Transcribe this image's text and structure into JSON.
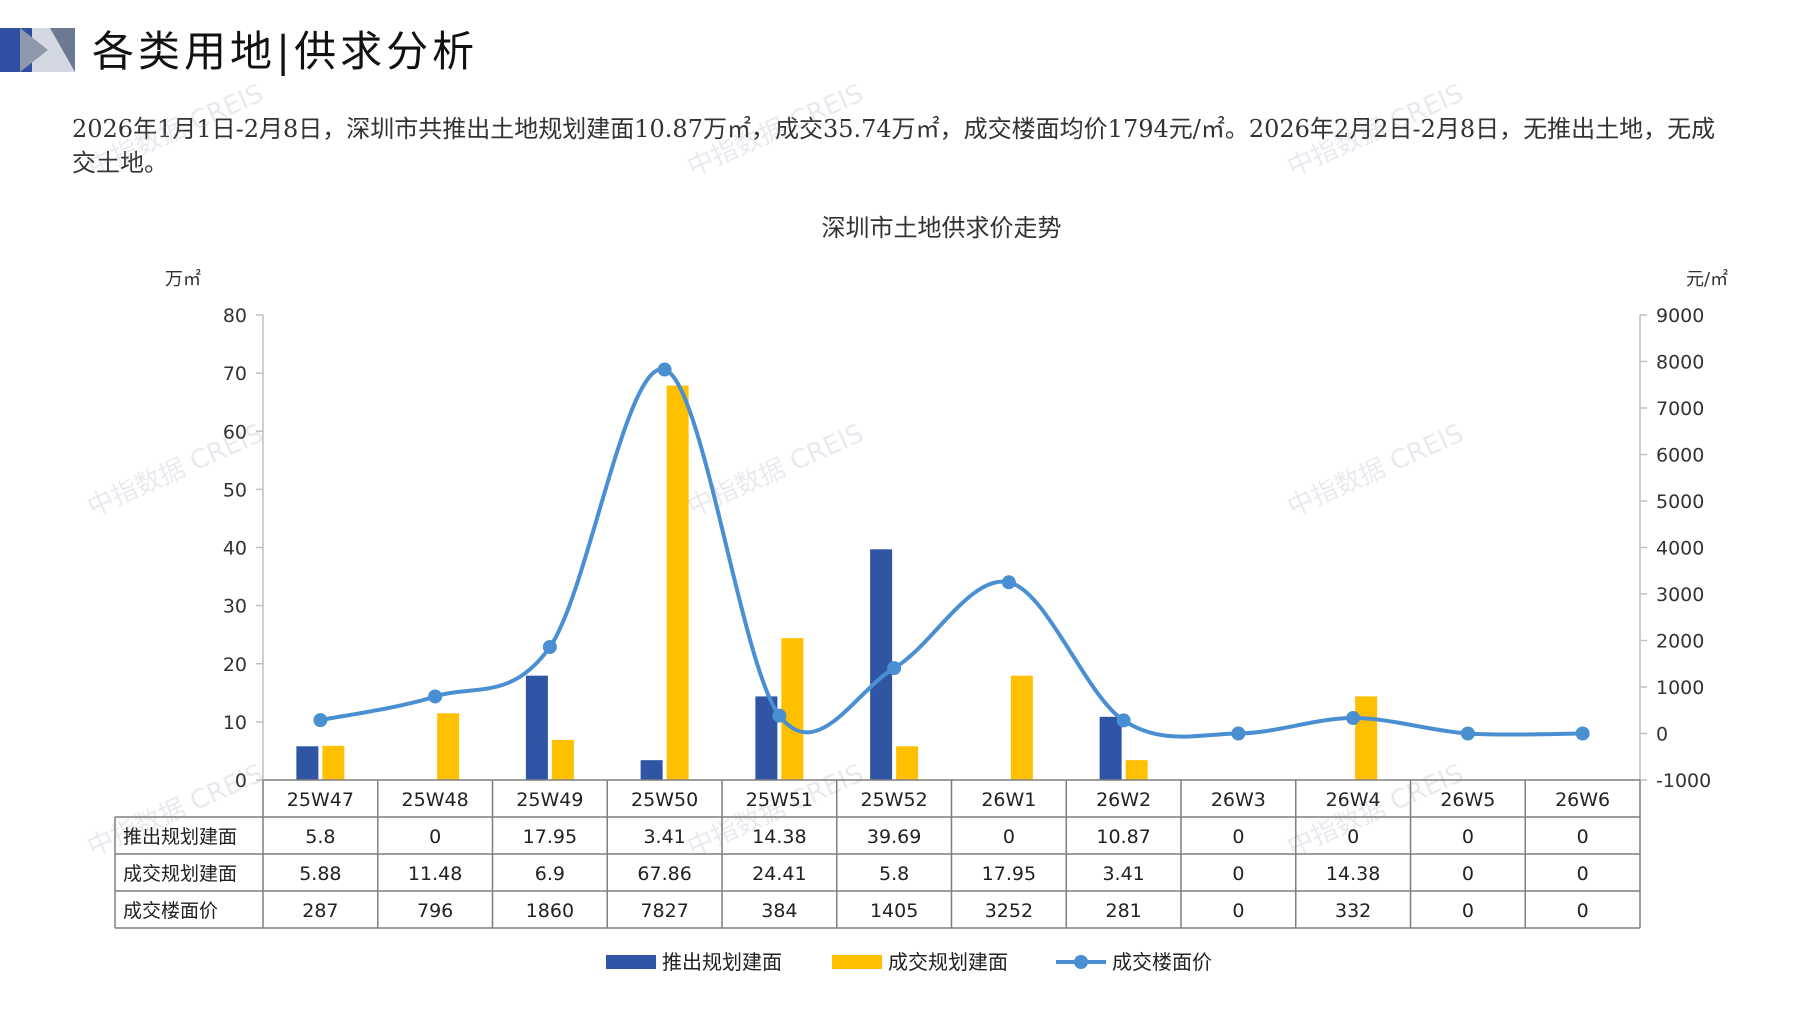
{
  "page": {
    "title": "各类用地|供求分析",
    "summary": "2026年1月1日-2月8日，深圳市共推出土地规划建面10.87万㎡，成交35.74万㎡，成交楼面均价1794元/㎡。2026年2月2日-2月8日，无推出土地，无成交土地。",
    "watermark": "中指数据 CREIS"
  },
  "colors": {
    "supply": "#2f55a4",
    "deal": "#ffc000",
    "price": "#4a8fd1",
    "header_dark": "#2f4fa0",
    "header_light": "#c5cad6"
  },
  "chart_data": {
    "type": "bar",
    "title": "深圳市土地供求价走势",
    "left_unit": "万㎡",
    "right_unit": "元/㎡",
    "ylim_left": [
      0,
      80
    ],
    "yticks_left": [
      "80",
      "70",
      "60",
      "50",
      "40",
      "30",
      "20",
      "10",
      "0"
    ],
    "ylim_right": [
      -1000,
      9000
    ],
    "yticks_right": [
      "9000",
      "8000",
      "7000",
      "6000",
      "5000",
      "4000",
      "3000",
      "2000",
      "1000",
      "0",
      "-1000"
    ],
    "categories": [
      "25W47",
      "25W48",
      "25W49",
      "25W50",
      "25W51",
      "25W52",
      "26W1",
      "26W2",
      "26W3",
      "26W4",
      "26W5",
      "26W6"
    ],
    "series": [
      {
        "name": "推出规划建面",
        "type": "bar",
        "axis": "left",
        "values": [
          5.8,
          0,
          17.95,
          3.41,
          14.38,
          39.69,
          0,
          10.87,
          0,
          0,
          0,
          0
        ],
        "labels": [
          "5.8",
          "0",
          "17.95",
          "3.41",
          "14.38",
          "39.69",
          "0",
          "10.87",
          "0",
          "0",
          "0",
          "0"
        ]
      },
      {
        "name": "成交规划建面",
        "type": "bar",
        "axis": "left",
        "values": [
          5.88,
          11.48,
          6.9,
          67.86,
          24.41,
          5.8,
          17.95,
          3.41,
          0,
          14.38,
          0,
          0
        ],
        "labels": [
          "5.88",
          "11.48",
          "6.9",
          "67.86",
          "24.41",
          "5.8",
          "17.95",
          "3.41",
          "0",
          "14.38",
          "0",
          "0"
        ]
      },
      {
        "name": "成交楼面价",
        "type": "line",
        "axis": "right",
        "values": [
          287,
          796,
          1860,
          7827,
          384,
          1405,
          3252,
          281,
          0,
          332,
          0,
          0
        ],
        "labels": [
          "287",
          "796",
          "1860",
          "7827",
          "384",
          "1405",
          "3252",
          "281",
          "0",
          "332",
          "0",
          "0"
        ]
      }
    ],
    "legend_position": "bottom",
    "grid": false
  }
}
